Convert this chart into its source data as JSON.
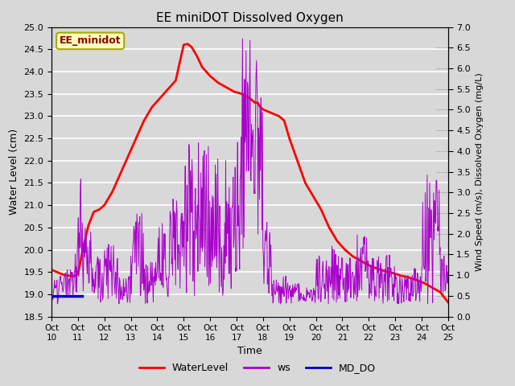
{
  "title": "EE miniDOT Dissolved Oxygen",
  "xlabel": "Time",
  "ylabel_left": "Water Level (cm)",
  "ylabel_right": "Wind Speed (m/s), Dissolved Oxygen (mg/L)",
  "annotation": "EE_minidot",
  "ylim_left": [
    18.5,
    25.0
  ],
  "ylim_right": [
    0.0,
    7.0
  ],
  "yticks_left": [
    18.5,
    19.0,
    19.5,
    20.0,
    20.5,
    21.0,
    21.5,
    22.0,
    22.5,
    23.0,
    23.5,
    24.0,
    24.5,
    25.0
  ],
  "yticks_right": [
    0.0,
    0.5,
    1.0,
    1.5,
    2.0,
    2.5,
    3.0,
    3.5,
    4.0,
    4.5,
    5.0,
    5.5,
    6.0,
    6.5,
    7.0
  ],
  "xtick_labels": [
    "Oct\n10",
    "Oct\n11",
    "Oct\n12",
    "Oct\n13",
    "Oct\n14",
    "Oct\n15",
    "Oct\n16",
    "Oct\n17",
    "Oct\n18",
    "Oct\n19",
    "Oct\n20",
    "Oct\n21",
    "Oct\n22",
    "Oct\n23",
    "Oct\n24",
    "Oct\n25"
  ],
  "color_waterlevel": "#FF0000",
  "color_ws": "#AA00CC",
  "color_do": "#0000CC",
  "background_color": "#D8D8D8",
  "grid_color": "#FFFFFF",
  "waterlevel_x": [
    10.0,
    10.2,
    10.4,
    10.6,
    10.8,
    11.0,
    11.2,
    11.4,
    11.6,
    11.8,
    12.0,
    12.3,
    12.6,
    12.9,
    13.2,
    13.5,
    13.8,
    14.1,
    14.4,
    14.7,
    15.0,
    15.15,
    15.3,
    15.5,
    15.7,
    16.0,
    16.3,
    16.6,
    16.9,
    17.2,
    17.5,
    17.6,
    17.7,
    17.8,
    17.9,
    18.0,
    18.2,
    18.4,
    18.6,
    18.8,
    19.0,
    19.3,
    19.6,
    19.9,
    20.2,
    20.5,
    20.8,
    21.1,
    21.4,
    21.7,
    22.0,
    22.3,
    22.6,
    22.9,
    23.2,
    23.5,
    23.8,
    24.1,
    24.4,
    24.7,
    25.0
  ],
  "waterlevel_y": [
    19.55,
    19.5,
    19.45,
    19.42,
    19.4,
    19.45,
    20.05,
    20.55,
    20.85,
    20.9,
    21.0,
    21.3,
    21.7,
    22.1,
    22.5,
    22.9,
    23.2,
    23.4,
    23.6,
    23.8,
    24.6,
    24.62,
    24.55,
    24.35,
    24.1,
    23.9,
    23.75,
    23.65,
    23.55,
    23.5,
    23.4,
    23.35,
    23.3,
    23.3,
    23.2,
    23.15,
    23.1,
    23.05,
    23.0,
    22.9,
    22.5,
    22.0,
    21.5,
    21.2,
    20.9,
    20.5,
    20.2,
    20.0,
    19.85,
    19.75,
    19.65,
    19.58,
    19.52,
    19.48,
    19.42,
    19.38,
    19.32,
    19.25,
    19.15,
    19.05,
    18.82
  ],
  "do_x": [
    10.0,
    10.1,
    10.2,
    10.3,
    10.4,
    10.5,
    10.6,
    10.7,
    10.8,
    10.9,
    11.0,
    11.1,
    11.15
  ],
  "do_y": [
    0.5,
    0.5,
    0.5,
    0.5,
    0.5,
    0.5,
    0.5,
    0.5,
    0.5,
    0.5,
    0.5,
    0.5,
    0.5
  ]
}
